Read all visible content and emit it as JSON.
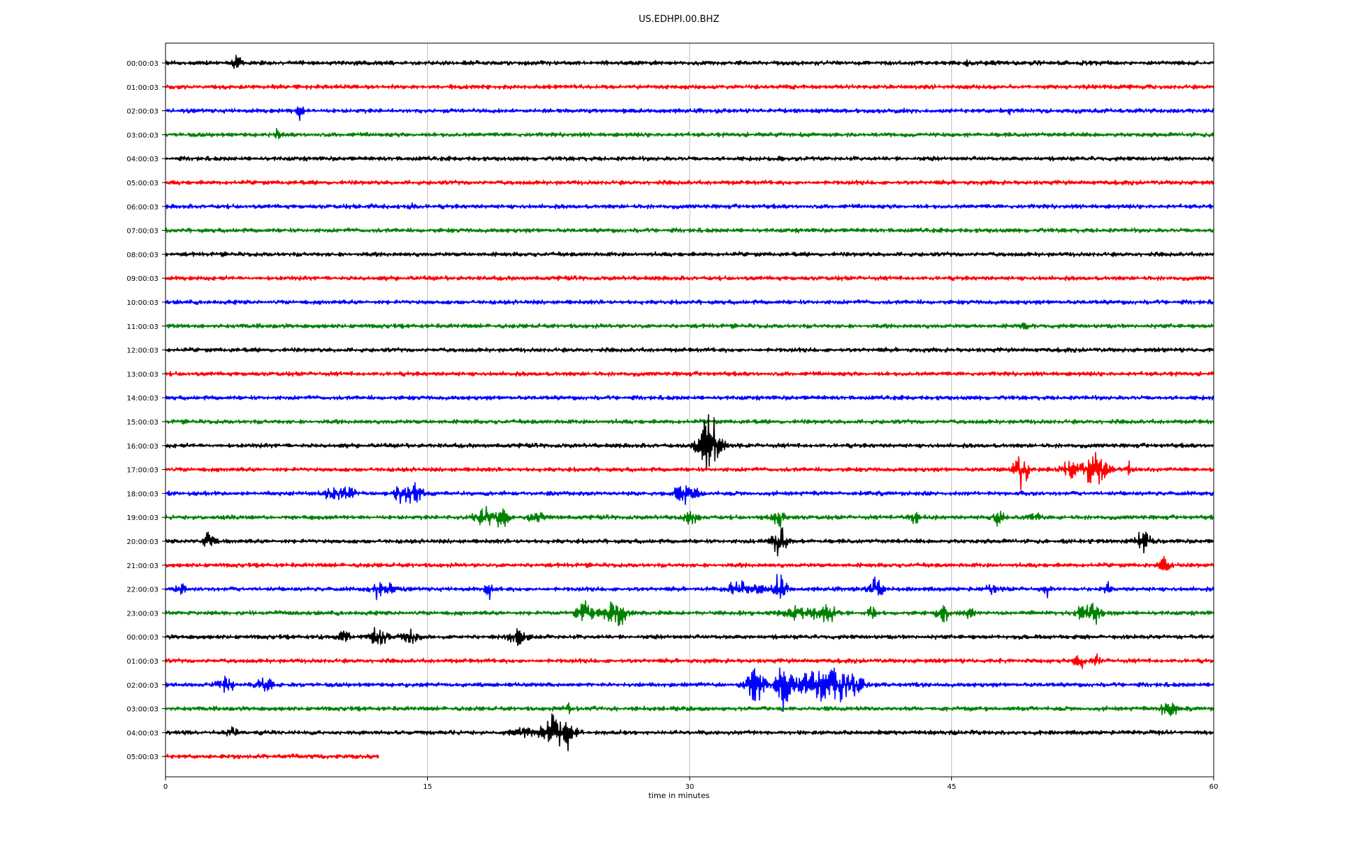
{
  "chart_data": {
    "type": "line",
    "title": "US.EDHPI.00.BHZ",
    "xlabel": "time in minutes",
    "ylabel": "",
    "xlim": [
      0,
      60
    ],
    "x_ticks": [
      0,
      15,
      30,
      45,
      60
    ],
    "grid": "vertical",
    "row_colors": [
      "#000000",
      "#ff0000",
      "#0000ff",
      "#008000"
    ],
    "rows": [
      {
        "label": "00:00:03",
        "events": [
          [
            4.1,
            0.5,
            0.3
          ],
          [
            45.8,
            0.3,
            0.2
          ]
        ]
      },
      {
        "label": "01:00:03",
        "events": []
      },
      {
        "label": "02:00:03",
        "events": [
          [
            7.7,
            0.6,
            0.3
          ],
          [
            48.2,
            0.3,
            0.2
          ]
        ]
      },
      {
        "label": "03:00:03",
        "events": [
          [
            6.4,
            0.5,
            0.15
          ]
        ]
      },
      {
        "label": "04:00:03",
        "events": []
      },
      {
        "label": "05:00:03",
        "events": []
      },
      {
        "label": "06:00:03",
        "events": [
          [
            14.1,
            0.5,
            0.15
          ],
          [
            11.8,
            0.3,
            0.2
          ]
        ]
      },
      {
        "label": "07:00:03",
        "events": []
      },
      {
        "label": "08:00:03",
        "events": []
      },
      {
        "label": "09:00:03",
        "events": []
      },
      {
        "label": "10:00:03",
        "events": []
      },
      {
        "label": "11:00:03",
        "events": [
          [
            49.2,
            0.3,
            0.2
          ]
        ]
      },
      {
        "label": "12:00:03",
        "events": []
      },
      {
        "label": "13:00:03",
        "events": []
      },
      {
        "label": "14:00:03",
        "events": []
      },
      {
        "label": "15:00:03",
        "events": []
      },
      {
        "label": "16:00:03",
        "events": [
          [
            31.2,
            2.2,
            0.7
          ],
          [
            30.8,
            0.9,
            0.5
          ]
        ]
      },
      {
        "label": "17:00:03",
        "events": [
          [
            49.0,
            1.5,
            0.5
          ],
          [
            51.8,
            0.7,
            0.7
          ],
          [
            53.0,
            1.9,
            0.5
          ],
          [
            53.6,
            0.7,
            0.6
          ],
          [
            55.2,
            0.6,
            0.2
          ]
        ]
      },
      {
        "label": "18:00:03",
        "events": [
          [
            9.5,
            0.7,
            0.5
          ],
          [
            10.5,
            0.6,
            0.5
          ],
          [
            13.5,
            0.8,
            0.5
          ],
          [
            14.3,
            0.7,
            0.5
          ],
          [
            29.6,
            0.8,
            0.6
          ],
          [
            30.3,
            0.5,
            0.4
          ]
        ]
      },
      {
        "label": "19:00:03",
        "events": [
          [
            18.2,
            0.9,
            0.7
          ],
          [
            19.2,
            0.9,
            0.5
          ],
          [
            21.2,
            0.5,
            0.5
          ],
          [
            30.1,
            0.6,
            0.4
          ],
          [
            35.1,
            0.8,
            0.4
          ],
          [
            42.9,
            0.6,
            0.4
          ],
          [
            47.7,
            1.0,
            0.3
          ],
          [
            49.8,
            0.3,
            0.5
          ]
        ]
      },
      {
        "label": "20:00:03",
        "events": [
          [
            2.5,
            0.8,
            0.4
          ],
          [
            35.1,
            1.4,
            0.5
          ],
          [
            55.9,
            1.1,
            0.5
          ]
        ]
      },
      {
        "label": "21:00:03",
        "events": [
          [
            57.3,
            0.9,
            0.4
          ]
        ]
      },
      {
        "label": "22:00:03",
        "events": [
          [
            0.8,
            0.8,
            0.3
          ],
          [
            12.1,
            0.8,
            0.3
          ],
          [
            12.8,
            0.7,
            0.3
          ],
          [
            18.5,
            0.9,
            0.2
          ],
          [
            32.8,
            0.7,
            0.8
          ],
          [
            34.0,
            0.5,
            0.3
          ],
          [
            35.1,
            1.1,
            0.5
          ],
          [
            40.7,
            1.1,
            0.5
          ],
          [
            47.3,
            0.5,
            0.3
          ],
          [
            50.5,
            0.8,
            0.2
          ],
          [
            53.9,
            0.5,
            0.2
          ]
        ]
      },
      {
        "label": "23:00:03",
        "events": [
          [
            24.0,
            0.9,
            0.6
          ],
          [
            25.7,
            1.2,
            0.8
          ],
          [
            36.5,
            0.7,
            1.2
          ],
          [
            37.9,
            0.8,
            0.5
          ],
          [
            40.4,
            0.7,
            0.3
          ],
          [
            44.5,
            0.9,
            0.4
          ],
          [
            46.0,
            0.7,
            0.3
          ],
          [
            52.3,
            0.7,
            0.3
          ],
          [
            53.1,
            1.1,
            0.5
          ]
        ]
      },
      {
        "label": "00:00:03",
        "events": [
          [
            10.2,
            0.5,
            0.5
          ],
          [
            12.2,
            1.0,
            0.5
          ],
          [
            14.1,
            0.6,
            0.6
          ],
          [
            20.1,
            0.6,
            0.6
          ]
        ]
      },
      {
        "label": "01:00:03",
        "events": [
          [
            52.3,
            0.6,
            0.4
          ],
          [
            53.3,
            0.4,
            0.2
          ]
        ]
      },
      {
        "label": "02:00:03",
        "events": [
          [
            3.4,
            0.6,
            0.6
          ],
          [
            5.7,
            0.7,
            0.5
          ],
          [
            33.8,
            1.9,
            0.6
          ],
          [
            35.4,
            2.0,
            0.5
          ],
          [
            37.6,
            1.3,
            2.2
          ],
          [
            39.0,
            0.7,
            1.2
          ]
        ]
      },
      {
        "label": "03:00:03",
        "events": [
          [
            57.4,
            1.5,
            0.4
          ],
          [
            23.1,
            0.4,
            0.3
          ]
        ]
      },
      {
        "label": "04:00:03",
        "events": [
          [
            20.5,
            0.5,
            0.7
          ],
          [
            22.5,
            1.9,
            1.0
          ],
          [
            3.8,
            0.4,
            0.4
          ]
        ]
      },
      {
        "label": "05:00:03",
        "events": [],
        "end": 12.2
      }
    ]
  }
}
